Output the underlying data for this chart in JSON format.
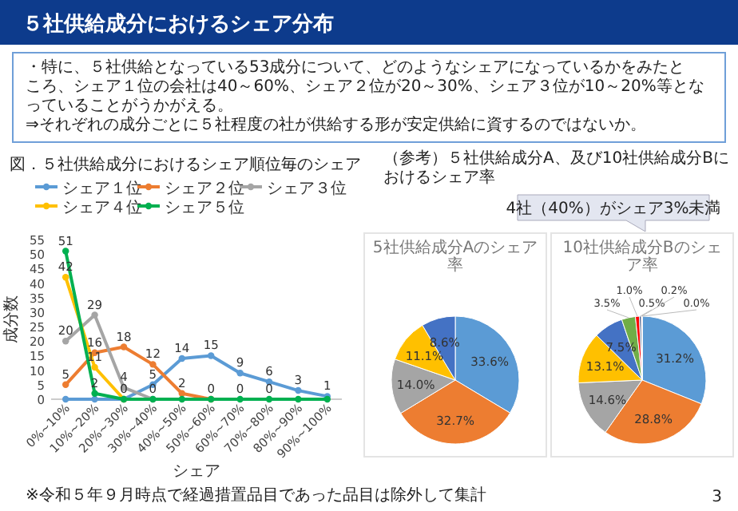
{
  "chart_data": [
    {
      "type": "other",
      "title": "５社供給成分におけるシェア分布",
      "annotations": [
        "・特に、５社供給となっている53成分について、どのようなシェアになっているかをみたところ、シェア１位の会社は40～60%、シェア２位が20～30%、シェア３位が10～20%等となっていることがうかがえる。",
        "⇒それぞれの成分ごとに５社程度の社が供給する形が安定供給に資するのではないか。",
        "（参考）５社供給成分A、及び10社供給成分Bにおけるシェア率",
        "3"
      ]
    },
    {
      "type": "line",
      "title": "図．５社供給成分におけるシェア順位毎のシェア",
      "xlabel": "シェア",
      "ylabel": "成分数",
      "categories": [
        "0%~10%",
        "10%~20%",
        "20%~30%",
        "30%~40%",
        "40%~50%",
        "50%~60%",
        "60%~70%",
        "70%~80%",
        "80%~90%",
        "90%~100%"
      ],
      "ylim": [
        0,
        55
      ],
      "yticks": [
        0,
        5,
        10,
        15,
        20,
        25,
        30,
        35,
        40,
        45,
        50,
        55
      ],
      "legend": "top",
      "marker": "circle",
      "annotations": [
        "※令和５年９月時点で経過措置品目であった品目は除外して集計"
      ],
      "series": [
        {
          "name": "シェア１位",
          "color": "#5b9bd5",
          "values": [
            0,
            0,
            0,
            5,
            14,
            15,
            9,
            6,
            3,
            1
          ],
          "value_labels": [
            null,
            null,
            null,
            "5",
            "14",
            "15",
            "9",
            "6",
            "3",
            "1"
          ]
        },
        {
          "name": "シェア２位",
          "color": "#ed7d31",
          "values": [
            5,
            16,
            18,
            12,
            2,
            0,
            null,
            null,
            null,
            null
          ],
          "value_labels": [
            "5",
            "16",
            "18",
            "12",
            "2",
            null,
            null,
            null,
            null,
            null
          ]
        },
        {
          "name": "シェア３位",
          "color": "#a5a5a5",
          "values": [
            20,
            29,
            4,
            0,
            null,
            null,
            null,
            null,
            null,
            null
          ],
          "value_labels": [
            "20",
            "29",
            "4",
            null,
            null,
            null,
            null,
            null,
            null,
            null
          ]
        },
        {
          "name": "シェア４位",
          "color": "#ffc000",
          "values": [
            42,
            11,
            0,
            null,
            null,
            null,
            null,
            null,
            null,
            null
          ],
          "value_labels": [
            "42",
            "11",
            null,
            null,
            null,
            null,
            null,
            null,
            null,
            null
          ]
        },
        {
          "name": "シェア５位",
          "color": "#00b050",
          "values": [
            51,
            2,
            0,
            0,
            0,
            0,
            0,
            0,
            0,
            0
          ],
          "value_labels": [
            "51",
            "2",
            "0",
            "0",
            null,
            "0",
            "0",
            "0",
            null,
            null
          ]
        }
      ]
    },
    {
      "type": "pie",
      "title": "5社供給成分Aのシェア率",
      "categories": [
        null,
        null,
        null,
        null,
        null
      ],
      "values": [
        33.6,
        32.7,
        14.0,
        11.1,
        8.6
      ],
      "colors": [
        "#5b9bd5",
        "#ed7d31",
        "#a5a5a5",
        "#ffc000",
        "#4472c4"
      ],
      "value_labels": [
        "33.6%",
        "32.7%",
        "14.0%",
        "11.1%",
        "8.6%"
      ]
    },
    {
      "type": "pie",
      "title": "10社供給成分Bのシェア率",
      "categories": [
        null,
        null,
        null,
        null,
        null,
        null,
        null,
        null,
        null,
        null
      ],
      "values": [
        31.2,
        28.8,
        14.6,
        13.1,
        7.5,
        3.5,
        1.0,
        0.5,
        0.2,
        0.0
      ],
      "colors": [
        "#5b9bd5",
        "#ed7d31",
        "#a5a5a5",
        "#ffc000",
        "#4472c4",
        "#70ad47",
        "#ff0000",
        "#264478",
        "#ff0000",
        "#9e480e"
      ],
      "value_labels": [
        "31.2%",
        "28.8%",
        "14.6%",
        "13.1%",
        "7.5%",
        "3.5%",
        "1.0%",
        "0.5%",
        "0.2%",
        "0.0%"
      ],
      "annotations": [
        "4社（40%）がシェア3%未満"
      ]
    }
  ]
}
